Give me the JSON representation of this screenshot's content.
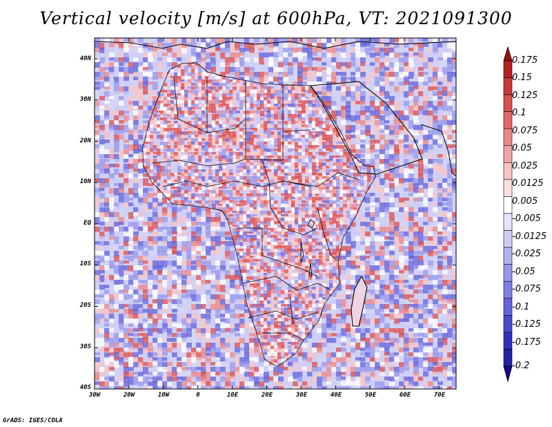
{
  "title": "Vertical velocity [m/s] at 600hPa, VT: 2021091300",
  "credit": "GrADS: IGES/COLA",
  "map": {
    "variable": "Vertical velocity",
    "units": "m/s",
    "level": "600hPa",
    "valid_time": "2021091300",
    "lon_range": [
      -30,
      75
    ],
    "lat_range": [
      -40,
      45
    ],
    "lon_tick_labels": [
      "30W",
      "20W",
      "10W",
      "0",
      "10E",
      "20E",
      "30E",
      "40E",
      "50E",
      "60E",
      "70E"
    ],
    "lat_tick_labels": [
      "40N",
      "30N",
      "20N",
      "10N",
      "EQ",
      "10S",
      "20S",
      "30S",
      "40S"
    ]
  },
  "colorbar": {
    "labels": [
      "0.175",
      "0.15",
      "0.125",
      "0.1",
      "0.075",
      "0.05",
      "0.025",
      "0.0125",
      "0.005",
      "-0.005",
      "-0.0125",
      "-0.025",
      "-0.05",
      "-0.075",
      "-0.1",
      "-0.125",
      "-0.175",
      "-0.2"
    ],
    "colors": [
      "#a01010",
      "#b82020",
      "#cc3838",
      "#dc5050",
      "#e46868",
      "#ec8888",
      "#f2a4a4",
      "#f8c4c4",
      "#fce0e0",
      "#ffffff",
      "#e4e4fc",
      "#ccccf8",
      "#b2b2f2",
      "#9898ec",
      "#7e7ee4",
      "#6464dc",
      "#4a4ad0",
      "#3030c0",
      "#2222a8",
      "#180a90"
    ]
  },
  "colors": {
    "background": "#ffffff",
    "map_fill": "#d4d4f4",
    "coastline": "#000000"
  }
}
